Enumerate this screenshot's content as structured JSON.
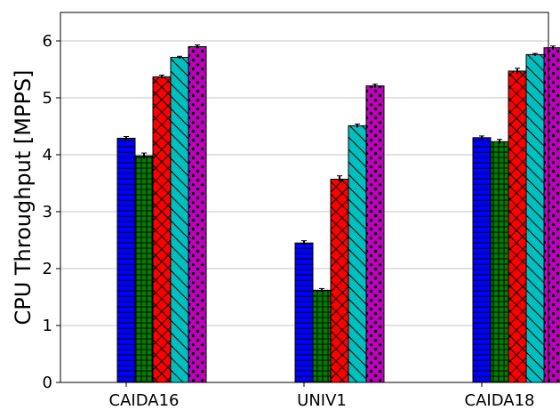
{
  "chart_data": {
    "type": "bar",
    "title": "",
    "xlabel": "",
    "ylabel": "CPU Throughput [MPPS]",
    "categories": [
      "CAIDA16",
      "UNIV1",
      "CAIDA18"
    ],
    "ylim": [
      0,
      6.5
    ],
    "yticks": [
      0,
      1,
      2,
      3,
      4,
      5,
      6
    ],
    "grid": "horizontal",
    "legend": "none",
    "series": [
      {
        "values": [
          4.29,
          2.45,
          4.3
        ],
        "errors": [
          0.03,
          0.04,
          0.03
        ],
        "color": "#0000ff",
        "pattern": "horizontal-lines"
      },
      {
        "values": [
          3.98,
          1.62,
          4.23
        ],
        "errors": [
          0.05,
          0.03,
          0.04
        ],
        "color": "#008000",
        "pattern": "grid"
      },
      {
        "values": [
          5.37,
          3.57,
          5.47
        ],
        "errors": [
          0.03,
          0.06,
          0.05
        ],
        "color": "#ff0000",
        "pattern": "crosshatch"
      },
      {
        "values": [
          5.71,
          4.51,
          5.76
        ],
        "errors": [
          0.02,
          0.03,
          0.02
        ],
        "color": "#00bfbf",
        "pattern": "backslash"
      },
      {
        "values": [
          5.9,
          5.21,
          5.88
        ],
        "errors": [
          0.03,
          0.03,
          0.03
        ],
        "color": "#bf00bf",
        "pattern": "stars"
      }
    ]
  }
}
